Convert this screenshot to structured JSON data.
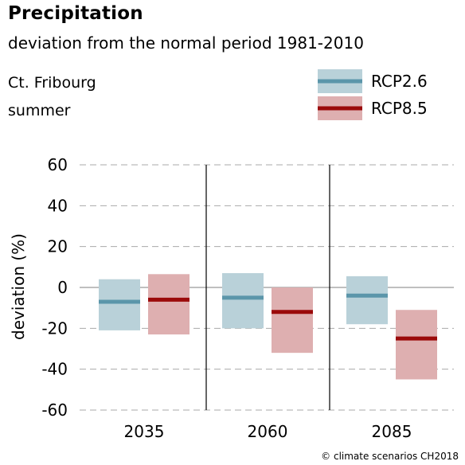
{
  "header": {
    "title": "Precipitation",
    "subtitle": "deviation from the normal period 1981-2010",
    "region": "Ct. Fribourg",
    "season": "summer"
  },
  "credit": "© climate scenarios CH2018",
  "colors": {
    "rcp26_line": "#5b96aa",
    "rcp26_box": "#b9d1d9",
    "rcp85_line": "#9b0a0a",
    "rcp85_box": "#deafb0",
    "grid": "#aaaaaa",
    "zero_line": "#999999"
  },
  "chart_data": {
    "type": "bar",
    "ylabel": "deviation (%)",
    "ylim": [
      -60,
      60
    ],
    "yticks": [
      60,
      40,
      20,
      0,
      -20,
      -40,
      -60
    ],
    "grid": "dashed horizontal",
    "legend": "top-right",
    "categories": [
      "2035",
      "2060",
      "2085"
    ],
    "series": [
      {
        "name": "RCP2.6",
        "median": [
          -7,
          -5,
          -4
        ],
        "low": [
          -21,
          -20,
          -18
        ],
        "high": [
          4,
          7,
          5.5
        ]
      },
      {
        "name": "RCP8.5",
        "median": [
          -6,
          -12,
          -25
        ],
        "low": [
          -23,
          -32,
          -45
        ],
        "high": [
          6.5,
          0,
          -11
        ]
      }
    ]
  }
}
